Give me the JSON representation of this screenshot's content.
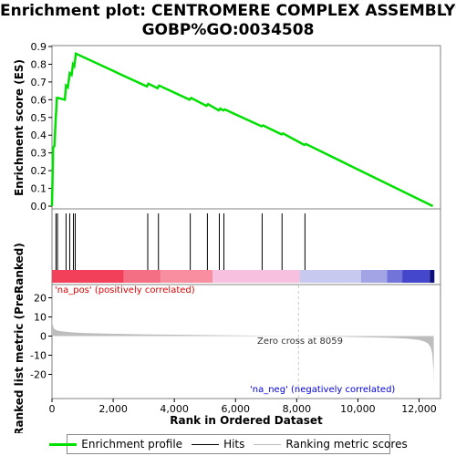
{
  "title": {
    "line1": "Enrichment plot: CENTROMERE COMPLEX ASSEMBLY%",
    "line2": "GOBP%GO:0034508"
  },
  "legend": {
    "items": [
      {
        "label": "Enrichment profile",
        "color": "#00e000"
      },
      {
        "label": "Hits",
        "color": "#000000"
      },
      {
        "label": "Ranking metric scores",
        "color": "#bdbdbd"
      }
    ]
  },
  "annotations": {
    "pos": "'na_pos' (positively correlated)",
    "neg": "'na_neg' (negatively correlated)",
    "zero_cross": "Zero cross at 8059"
  },
  "colors": {
    "es_line": "#00e000",
    "pos_text": "#e00000",
    "neg_text": "#0000e0",
    "metric_fill": "#bdbdbd"
  },
  "chart_data": [
    {
      "type": "line",
      "name": "enrichment-profile",
      "ylabel": "Enrichment score (ES)",
      "xlim": [
        0,
        12700
      ],
      "ylim": [
        0,
        0.9
      ],
      "yticks": [
        0.0,
        0.1,
        0.2,
        0.3,
        0.4,
        0.5,
        0.6,
        0.7,
        0.8,
        0.9
      ],
      "ytick_labels": [
        "0.0",
        "0.1",
        "0.2",
        "0.3",
        "0.4",
        "0.5",
        "0.6",
        "0.7",
        "0.8",
        "0.9"
      ],
      "grid": false,
      "x": [
        0,
        40,
        80,
        120,
        160,
        200,
        420,
        460,
        520,
        580,
        640,
        690,
        730,
        780,
        3100,
        3150,
        3450,
        3500,
        4500,
        4550,
        5050,
        5100,
        5450,
        5500,
        5600,
        5650,
        6850,
        6900,
        7500,
        7550,
        8250,
        8300,
        12450
      ],
      "y": [
        0.0,
        0.33,
        0.34,
        0.48,
        0.61,
        0.61,
        0.6,
        0.68,
        0.67,
        0.75,
        0.74,
        0.8,
        0.79,
        0.86,
        0.675,
        0.69,
        0.665,
        0.68,
        0.6,
        0.61,
        0.565,
        0.575,
        0.54,
        0.55,
        0.54,
        0.545,
        0.45,
        0.455,
        0.405,
        0.41,
        0.345,
        0.35,
        0.0
      ]
    },
    {
      "type": "hits",
      "name": "hits",
      "x": [
        130,
        180,
        460,
        580,
        700,
        760,
        3130,
        3480,
        4520,
        5080,
        5470,
        5620,
        6870,
        7520,
        8270
      ]
    },
    {
      "type": "heatmap",
      "name": "rank-color-bar",
      "segments": [
        {
          "from": 0,
          "to": 2350,
          "color": "#f2405a"
        },
        {
          "from": 2350,
          "to": 3550,
          "color": "#f56f84"
        },
        {
          "from": 3550,
          "to": 5250,
          "color": "#f88ea0"
        },
        {
          "from": 5250,
          "to": 8100,
          "color": "#f6c0de"
        },
        {
          "from": 8100,
          "to": 10100,
          "color": "#c7c9ef"
        },
        {
          "from": 10100,
          "to": 10950,
          "color": "#a2a4e6"
        },
        {
          "from": 10950,
          "to": 11450,
          "color": "#7274da"
        },
        {
          "from": 11450,
          "to": 12350,
          "color": "#4446cc"
        },
        {
          "from": 12350,
          "to": 12500,
          "color": "#10107a"
        }
      ]
    },
    {
      "type": "area",
      "name": "ranked-list-metric",
      "xlabel": "Rank in Ordered Dataset",
      "ylabel": "Ranked list metric (PreRanked)",
      "xlim": [
        0,
        12700
      ],
      "ylim": [
        -27,
        27
      ],
      "xticks": [
        0,
        2000,
        4000,
        6000,
        8000,
        10000,
        12000
      ],
      "xtick_labels": [
        "0",
        "2,000",
        "4,000",
        "6,000",
        "8,000",
        "10,000",
        "12,000"
      ],
      "yticks": [
        -20,
        -10,
        0,
        10,
        20
      ],
      "ytick_labels": [
        "-20",
        "-10",
        "0",
        "10",
        "20"
      ],
      "zero_cross": 8059,
      "x": [
        0,
        20,
        60,
        150,
        300,
        600,
        1000,
        2000,
        3000,
        4000,
        5000,
        6000,
        7000,
        8059,
        9000,
        10000,
        11000,
        11600,
        12000,
        12200,
        12300,
        12380,
        12430,
        12470,
        12480
      ],
      "y": [
        12,
        6,
        4,
        3,
        2.5,
        2,
        1.6,
        1.2,
        0.9,
        0.7,
        0.5,
        0.35,
        0.2,
        0.0,
        -0.25,
        -0.5,
        -0.9,
        -1.3,
        -2.0,
        -3.0,
        -4.0,
        -6.0,
        -9.0,
        -18.0,
        -26.0
      ]
    }
  ]
}
